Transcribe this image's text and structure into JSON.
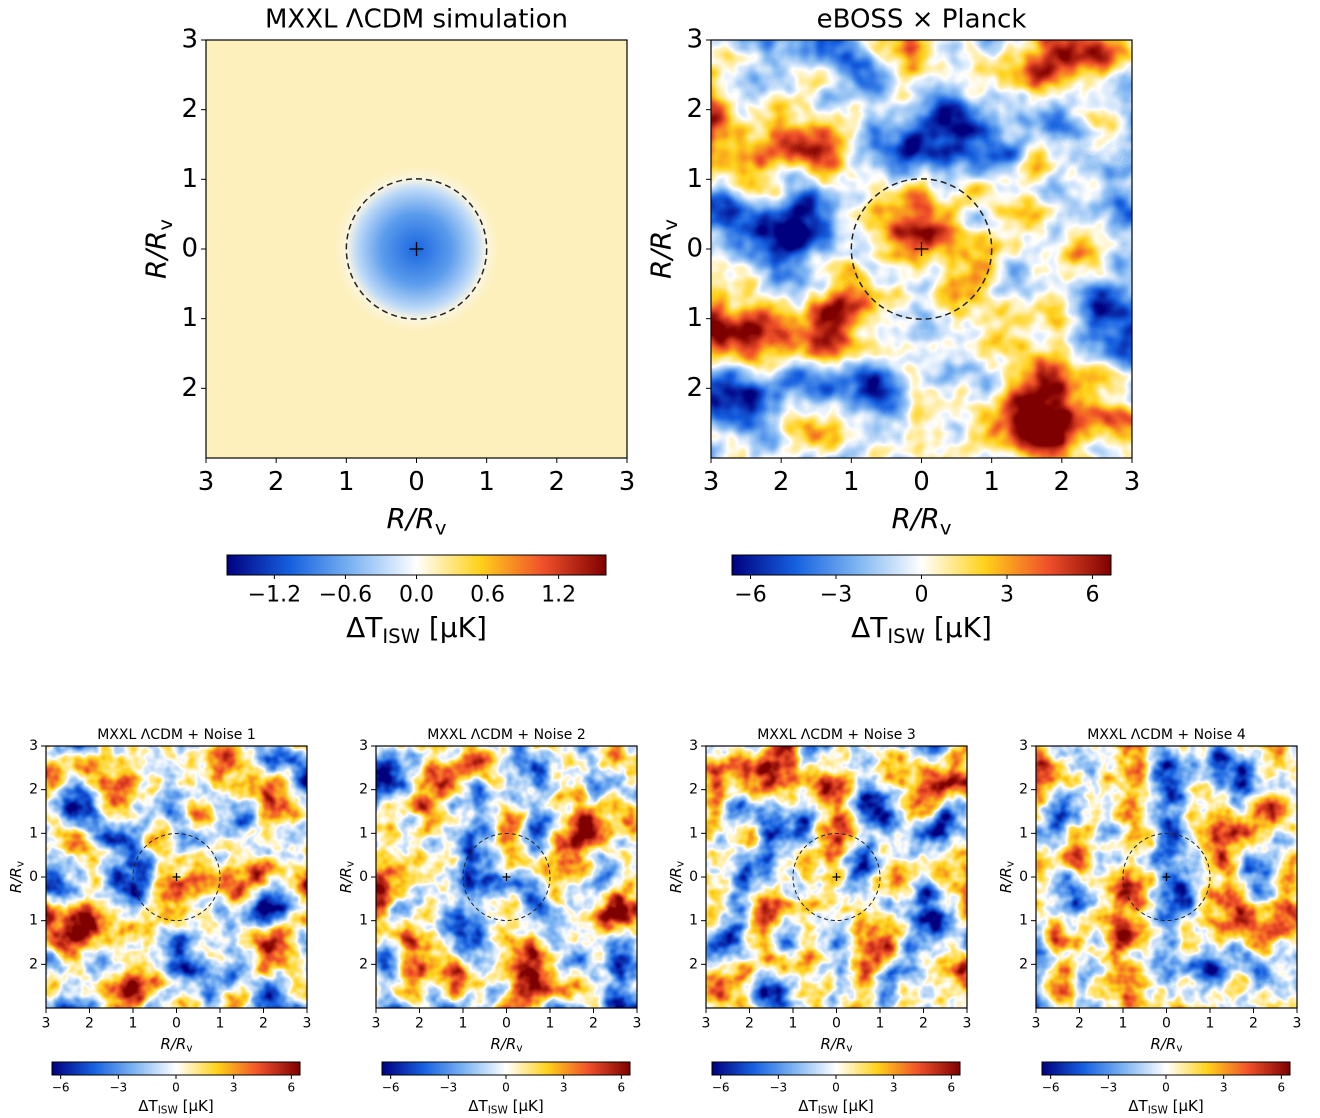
{
  "chart_data": [
    {
      "type": "heatmap",
      "title": "MXXL ΛCDM simulation",
      "x_label": [
        {
          "text": "R/R"
        },
        {
          "text": "v",
          "sub": true
        }
      ],
      "y_label": [
        {
          "text": "R/R"
        },
        {
          "text": "v",
          "sub": true
        }
      ],
      "xlim": [
        -3,
        3
      ],
      "ylim": [
        -3,
        3
      ],
      "xticks": [
        {
          "value": -3,
          "label": "3"
        },
        {
          "value": -2,
          "label": "2"
        },
        {
          "value": -1,
          "label": "1"
        },
        0,
        1,
        2,
        3
      ],
      "yticks": [
        3,
        2,
        1,
        0,
        {
          "value": -1,
          "label": "1"
        },
        {
          "value": -2,
          "label": "2"
        }
      ],
      "circle_radius": 1,
      "colormap": [
        "#00007f",
        "#1560e0",
        "#7fb6f2",
        "#ffffff",
        "#ffd21a",
        "#f0502a",
        "#7f0000"
      ],
      "colorbar": {
        "label": [
          {
            "text": "ΔT"
          },
          {
            "text": "ISW",
            "sub": true
          },
          {
            "text": " [μK]"
          }
        ],
        "clim": [
          -1.6,
          1.6
        ],
        "ticks": [
          {
            "value": -1.2,
            "label": "−1.2"
          },
          {
            "value": -0.6,
            "label": "−0.6"
          },
          {
            "value": 0,
            "label": "0.0"
          },
          0.6,
          1.2
        ]
      }
    },
    {
      "type": "heatmap",
      "title": "eBOSS × Planck",
      "x_label": [
        {
          "text": "R/R"
        },
        {
          "text": "v",
          "sub": true
        }
      ],
      "y_label": [
        {
          "text": "R/R"
        },
        {
          "text": "v",
          "sub": true
        }
      ],
      "xlim": [
        -3,
        3
      ],
      "ylim": [
        -3,
        3
      ],
      "xticks": [
        {
          "value": -3,
          "label": "3"
        },
        {
          "value": -2,
          "label": "2"
        },
        {
          "value": -1,
          "label": "1"
        },
        0,
        1,
        2,
        3
      ],
      "yticks": [
        3,
        2,
        1,
        0,
        {
          "value": -1,
          "label": "1"
        },
        {
          "value": -2,
          "label": "2"
        }
      ],
      "circle_radius": 1,
      "colormap": [
        "#00007f",
        "#1560e0",
        "#7fb6f2",
        "#ffffff",
        "#ffd21a",
        "#f0502a",
        "#7f0000"
      ],
      "colorbar": {
        "label": [
          {
            "text": "ΔT"
          },
          {
            "text": "ISW",
            "sub": true
          },
          {
            "text": " [μK]"
          }
        ],
        "clim": [
          -6.65,
          6.65
        ],
        "ticks": [
          {
            "value": -6,
            "label": "−6"
          },
          {
            "value": -3,
            "label": "−3"
          },
          0,
          3,
          6
        ]
      }
    },
    {
      "type": "heatmap",
      "title": "MXXL ΛCDM + Noise 1",
      "x_label": [
        {
          "text": "R/R"
        },
        {
          "text": "v",
          "sub": true
        }
      ],
      "y_label": [
        {
          "text": "R/R"
        },
        {
          "text": "v",
          "sub": true
        }
      ],
      "xlim": [
        -3,
        3
      ],
      "ylim": [
        -3,
        3
      ],
      "xticks": [
        {
          "value": -3,
          "label": "3"
        },
        {
          "value": -2,
          "label": "2"
        },
        {
          "value": -1,
          "label": "1"
        },
        0,
        1,
        2,
        3
      ],
      "yticks": [
        3,
        2,
        1,
        0,
        {
          "value": -1,
          "label": "1"
        },
        {
          "value": -2,
          "label": "2"
        }
      ],
      "circle_radius": 1,
      "colormap": [
        "#00007f",
        "#1560e0",
        "#7fb6f2",
        "#ffffff",
        "#ffd21a",
        "#f0502a",
        "#7f0000"
      ],
      "colorbar": {
        "label": [
          {
            "text": "ΔT"
          },
          {
            "text": "ISW",
            "sub": true
          },
          {
            "text": " [μK]"
          }
        ],
        "clim": [
          -6.45,
          6.45
        ],
        "ticks": [
          {
            "value": -6,
            "label": "−6"
          },
          {
            "value": -3,
            "label": "−3"
          },
          0,
          3,
          6
        ]
      }
    },
    {
      "type": "heatmap",
      "title": "MXXL ΛCDM + Noise 2",
      "x_label": [
        {
          "text": "R/R"
        },
        {
          "text": "v",
          "sub": true
        }
      ],
      "y_label": [
        {
          "text": "R/R"
        },
        {
          "text": "v",
          "sub": true
        }
      ],
      "xlim": [
        -3,
        3
      ],
      "ylim": [
        -3,
        3
      ],
      "xticks": [
        {
          "value": -3,
          "label": "3"
        },
        {
          "value": -2,
          "label": "2"
        },
        {
          "value": -1,
          "label": "1"
        },
        0,
        1,
        2,
        3
      ],
      "yticks": [
        3,
        2,
        1,
        0,
        {
          "value": -1,
          "label": "1"
        },
        {
          "value": -2,
          "label": "2"
        }
      ],
      "circle_radius": 1,
      "colormap": [
        "#00007f",
        "#1560e0",
        "#7fb6f2",
        "#ffffff",
        "#ffd21a",
        "#f0502a",
        "#7f0000"
      ],
      "colorbar": {
        "label": [
          {
            "text": "ΔT"
          },
          {
            "text": "ISW",
            "sub": true
          },
          {
            "text": " [μK]"
          }
        ],
        "clim": [
          -6.45,
          6.45
        ],
        "ticks": [
          {
            "value": -6,
            "label": "−6"
          },
          {
            "value": -3,
            "label": "−3"
          },
          0,
          3,
          6
        ]
      }
    },
    {
      "type": "heatmap",
      "title": "MXXL ΛCDM + Noise 3",
      "x_label": [
        {
          "text": "R/R"
        },
        {
          "text": "v",
          "sub": true
        }
      ],
      "y_label": [
        {
          "text": "R/R"
        },
        {
          "text": "v",
          "sub": true
        }
      ],
      "xlim": [
        -3,
        3
      ],
      "ylim": [
        -3,
        3
      ],
      "xticks": [
        {
          "value": -3,
          "label": "3"
        },
        {
          "value": -2,
          "label": "2"
        },
        {
          "value": -1,
          "label": "1"
        },
        0,
        1,
        2,
        3
      ],
      "yticks": [
        3,
        2,
        1,
        0,
        {
          "value": -1,
          "label": "1"
        },
        {
          "value": -2,
          "label": "2"
        }
      ],
      "circle_radius": 1,
      "colormap": [
        "#00007f",
        "#1560e0",
        "#7fb6f2",
        "#ffffff",
        "#ffd21a",
        "#f0502a",
        "#7f0000"
      ],
      "colorbar": {
        "label": [
          {
            "text": "ΔT"
          },
          {
            "text": "ISW",
            "sub": true
          },
          {
            "text": " [μK]"
          }
        ],
        "clim": [
          -6.45,
          6.45
        ],
        "ticks": [
          {
            "value": -6,
            "label": "−6"
          },
          {
            "value": -3,
            "label": "−3"
          },
          0,
          3,
          6
        ]
      }
    },
    {
      "type": "heatmap",
      "title": "MXXL ΛCDM + Noise 4",
      "x_label": [
        {
          "text": "R/R"
        },
        {
          "text": "v",
          "sub": true
        }
      ],
      "y_label": [
        {
          "text": "R/R"
        },
        {
          "text": "v",
          "sub": true
        }
      ],
      "xlim": [
        -3,
        3
      ],
      "ylim": [
        -3,
        3
      ],
      "xticks": [
        {
          "value": -3,
          "label": "3"
        },
        {
          "value": -2,
          "label": "2"
        },
        {
          "value": -1,
          "label": "1"
        },
        0,
        1,
        2,
        3
      ],
      "yticks": [
        3,
        2,
        1,
        0,
        {
          "value": -1,
          "label": "1"
        },
        {
          "value": -2,
          "label": "2"
        }
      ],
      "circle_radius": 1,
      "colormap": [
        "#00007f",
        "#1560e0",
        "#7fb6f2",
        "#ffffff",
        "#ffd21a",
        "#f0502a",
        "#7f0000"
      ],
      "colorbar": {
        "label": [
          {
            "text": "ΔT"
          },
          {
            "text": "ISW",
            "sub": true
          },
          {
            "text": " [μK]"
          }
        ],
        "clim": [
          -6.45,
          6.45
        ],
        "ticks": [
          {
            "value": -6,
            "label": "−6"
          },
          {
            "value": -3,
            "label": "−3"
          },
          0,
          3,
          6
        ]
      }
    }
  ]
}
